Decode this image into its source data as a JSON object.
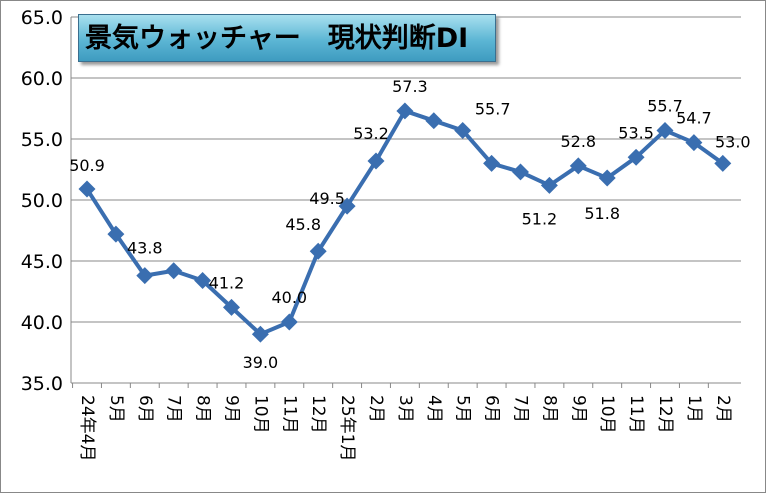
{
  "chart_data": {
    "type": "line",
    "title": "景気ウォッチャー　現状判断DI",
    "xlabel": "",
    "ylabel": "",
    "ylim": [
      35,
      65
    ],
    "yticks": [
      "35.0",
      "40.0",
      "45.0",
      "50.0",
      "55.0",
      "60.0",
      "65.0"
    ],
    "grid": true,
    "legend": "none",
    "categories": [
      "24年4月",
      "5月",
      "6月",
      "7月",
      "8月",
      "9月",
      "10月",
      "11月",
      "12月",
      "25年1月",
      "2月",
      "3月",
      "4月",
      "5月",
      "6月",
      "7月",
      "8月",
      "9月",
      "10月",
      "11月",
      "12月",
      "1月",
      "2月"
    ],
    "series": [
      {
        "name": "現状判断DI",
        "color": "#3a6eb0",
        "values": [
          50.9,
          47.2,
          43.8,
          44.2,
          43.4,
          41.2,
          39.0,
          40.0,
          45.8,
          49.5,
          53.2,
          57.3,
          56.5,
          55.7,
          53.0,
          52.3,
          51.2,
          52.8,
          51.8,
          53.5,
          55.7,
          54.7,
          53.0
        ]
      }
    ],
    "data_labels": [
      {
        "index": 0,
        "text": "50.9"
      },
      {
        "index": 2,
        "text": "43.8"
      },
      {
        "index": 5,
        "text": "41.2"
      },
      {
        "index": 6,
        "text": "39.0"
      },
      {
        "index": 7,
        "text": "40.0"
      },
      {
        "index": 8,
        "text": "45.8"
      },
      {
        "index": 9,
        "text": "49.5"
      },
      {
        "index": 10,
        "text": "53.2"
      },
      {
        "index": 11,
        "text": "57.3"
      },
      {
        "index": 13,
        "text": "55.7"
      },
      {
        "index": 16,
        "text": "51.2"
      },
      {
        "index": 17,
        "text": "52.8"
      },
      {
        "index": 18,
        "text": "51.8"
      },
      {
        "index": 19,
        "text": "53.5"
      },
      {
        "index": 20,
        "text": "55.7"
      },
      {
        "index": 21,
        "text": "54.7"
      },
      {
        "index": 22,
        "text": "53.0"
      }
    ]
  }
}
